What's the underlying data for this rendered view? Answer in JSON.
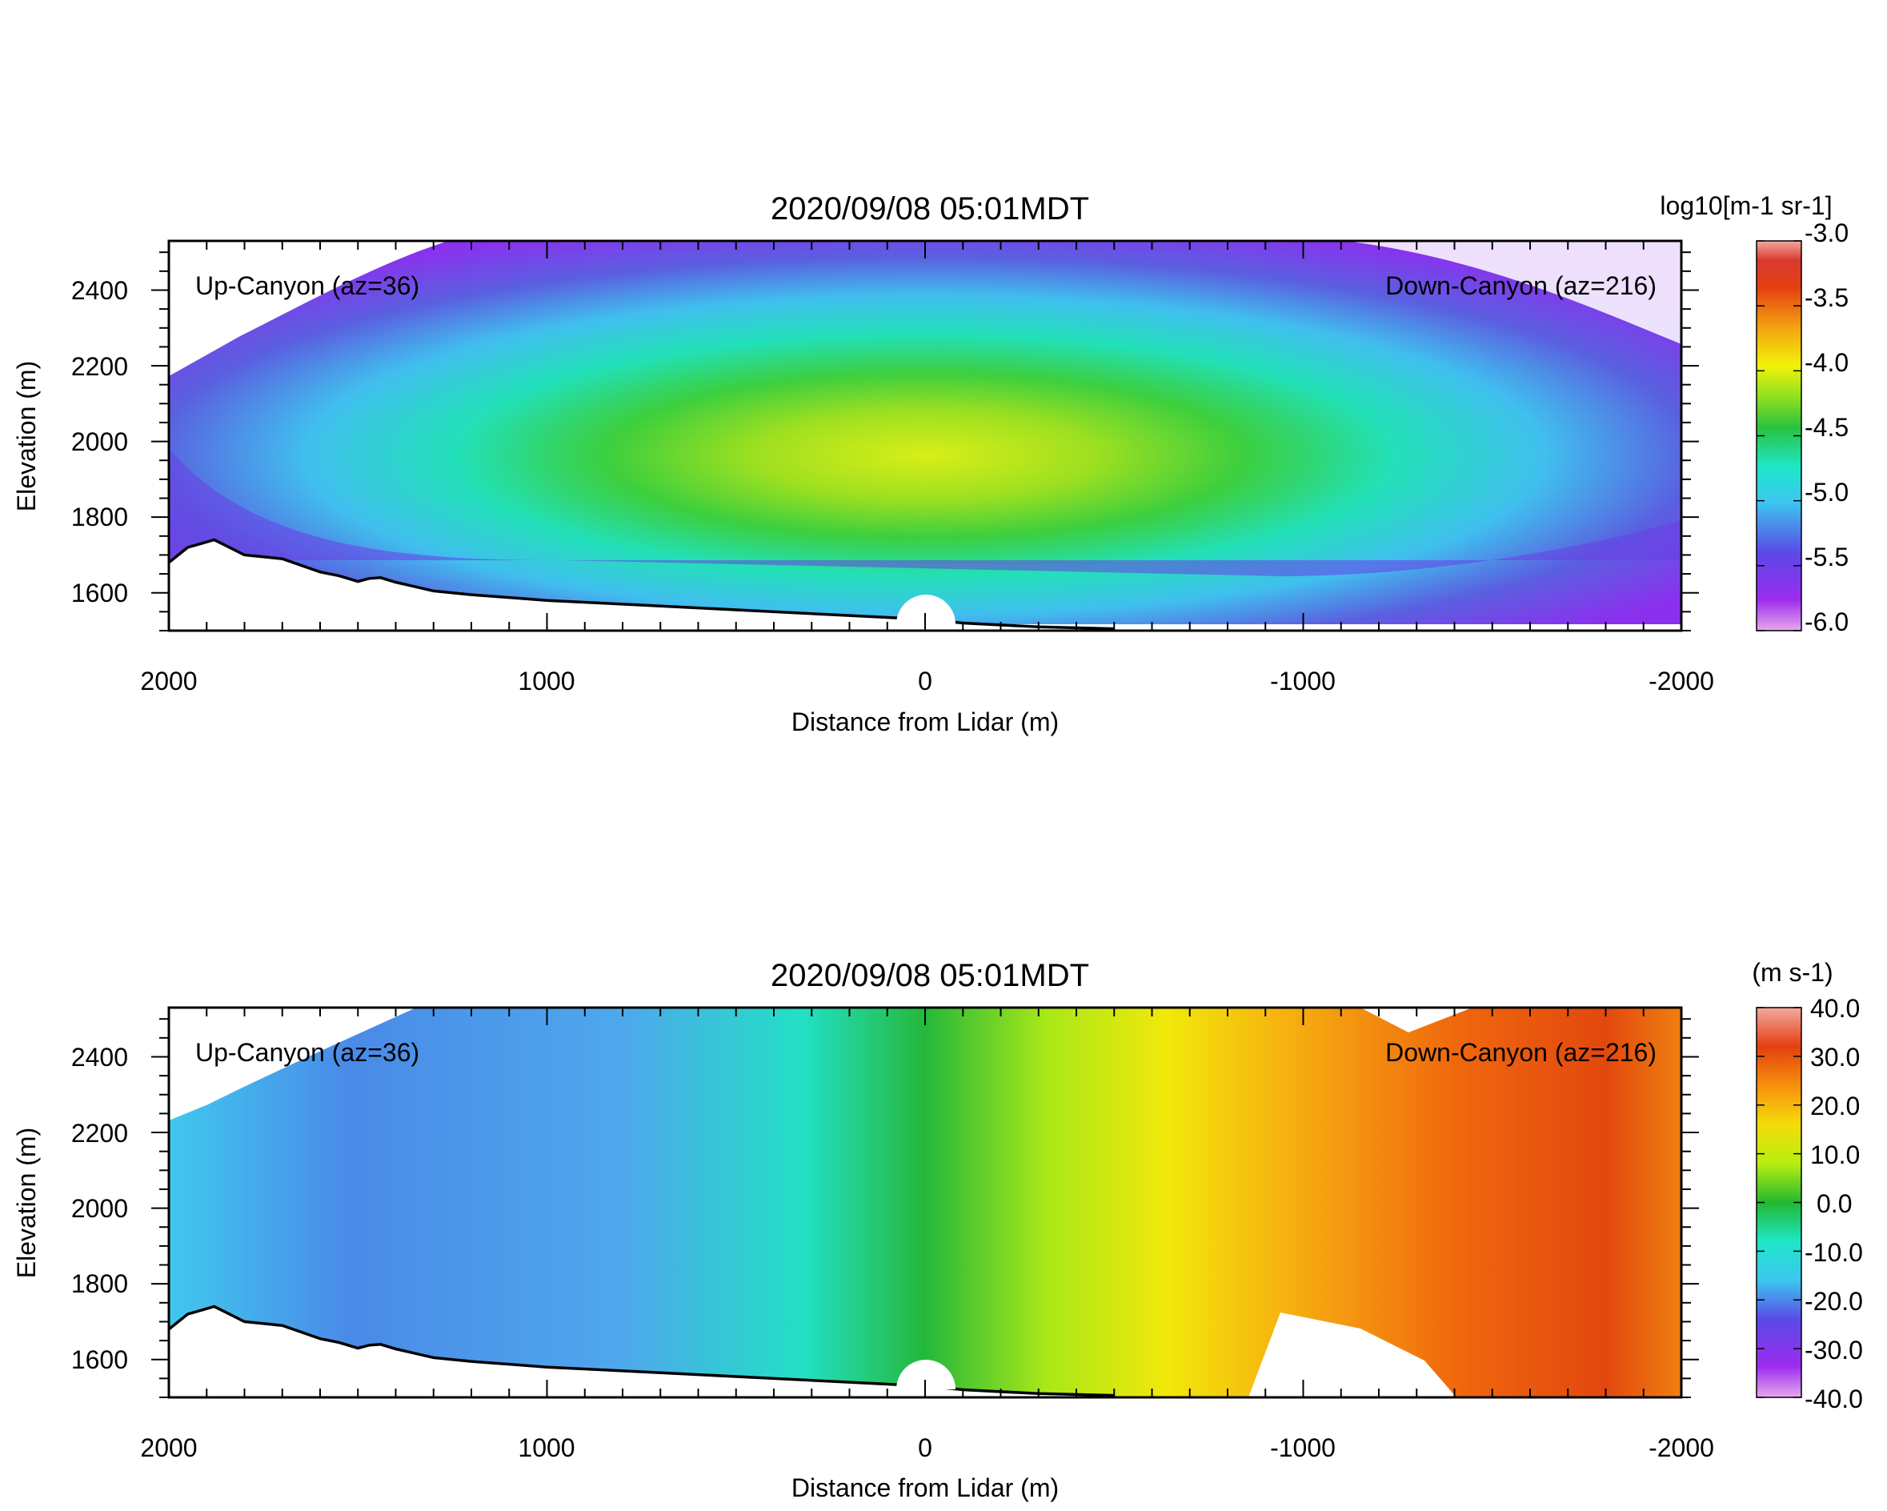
{
  "chart_data": [
    {
      "type": "heatmap",
      "title": "2020/09/08 05:01MDT",
      "xlabel": "Distance from Lidar (m)",
      "ylabel": "Elevation (m)",
      "xlim": [
        2000,
        -2000
      ],
      "ylim": [
        1500,
        2530
      ],
      "xticks": [
        "2000",
        "1000",
        "0",
        "-1000",
        "-2000"
      ],
      "yticks": [
        "1600",
        "1800",
        "2000",
        "2200",
        "2400"
      ],
      "annotations": {
        "left": "Up-Canyon (az=36)",
        "right": "Down-Canyon (az=216)"
      },
      "colorbar": {
        "label": "log10[m-1 sr-1]",
        "range": [
          -6.0,
          -3.0
        ],
        "ticks": [
          "-3.0",
          "-3.5",
          "-4.0",
          "-4.5",
          "-5.0",
          "-5.5",
          "-6.0"
        ]
      },
      "field_levels": {
        "center": -4.3,
        "mid": -5.0,
        "edge": -5.6
      }
    },
    {
      "type": "heatmap",
      "title": "2020/09/08 05:01MDT",
      "xlabel": "Distance from Lidar (m)",
      "ylabel": "Elevation (m)",
      "xlim": [
        2000,
        -2000
      ],
      "ylim": [
        1500,
        2530
      ],
      "xticks": [
        "2000",
        "1000",
        "0",
        "-1000",
        "-2000"
      ],
      "yticks": [
        "1600",
        "1800",
        "2000",
        "2200",
        "2400"
      ],
      "annotations": {
        "left": "Up-Canyon (az=36)",
        "right": "Down-Canyon (az=216)"
      },
      "colorbar": {
        "label": "(m s-1)",
        "range": [
          -40.0,
          40.0
        ],
        "ticks": [
          "40.0",
          "30.0",
          "20.0",
          "10.0",
          "0.0",
          "-10.0",
          "-20.0",
          "-30.0",
          "-40.0"
        ]
      },
      "field_levels": {
        "left": -18,
        "center": 0,
        "right": 24
      }
    }
  ],
  "terrain": {
    "x": [
      2000,
      1950,
      1880,
      1850,
      1800,
      1750,
      1700,
      1600,
      1550,
      1500,
      1470,
      1440,
      1400,
      1300,
      1200,
      1000,
      800,
      600,
      400,
      200,
      0,
      -100,
      -300,
      -500
    ],
    "y": [
      1680,
      1720,
      1740,
      1725,
      1700,
      1695,
      1690,
      1655,
      1645,
      1630,
      1638,
      1640,
      1628,
      1605,
      1595,
      1580,
      1570,
      1560,
      1550,
      1540,
      1530,
      1520,
      1510,
      1505
    ]
  }
}
